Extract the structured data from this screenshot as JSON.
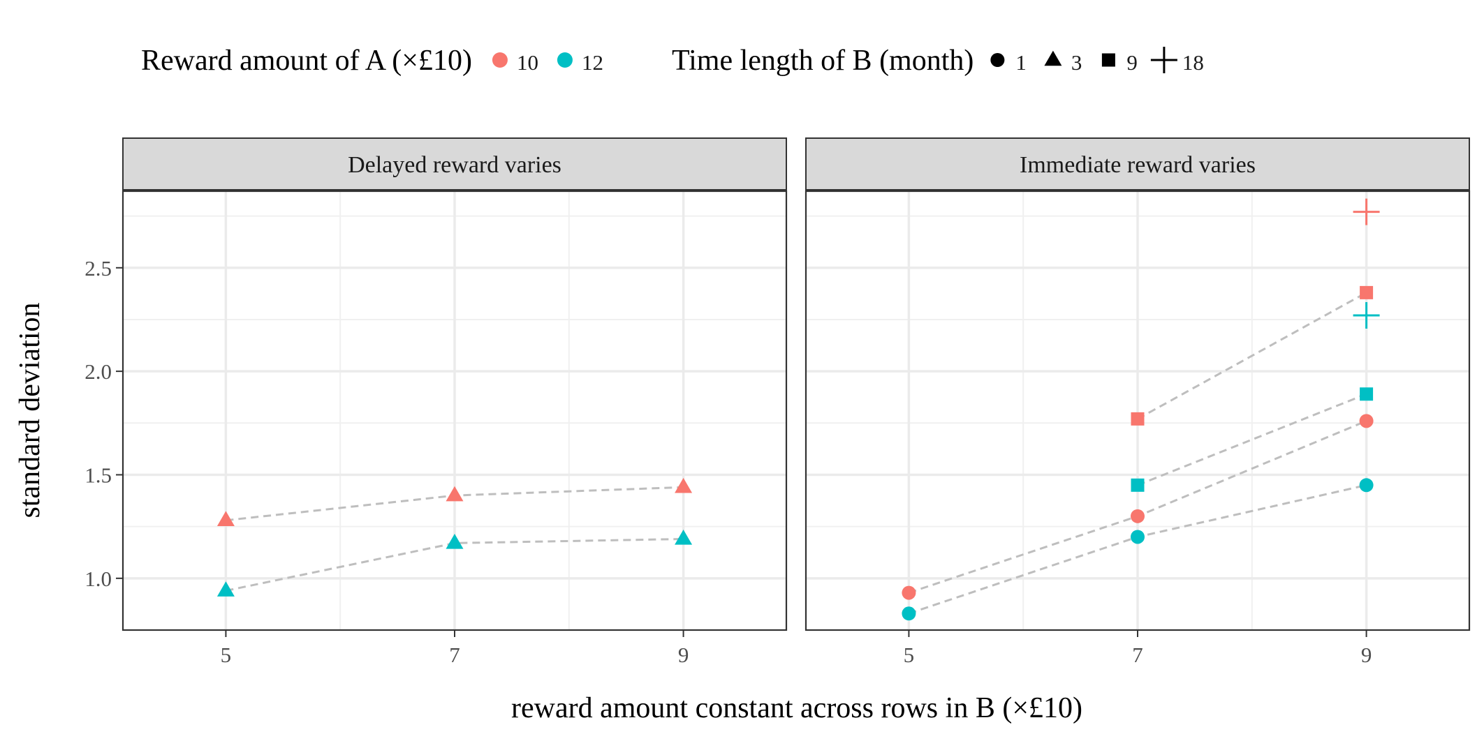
{
  "chart_data": {
    "type": "scatter",
    "xlabel": "reward amount constant across rows in B (×£10)",
    "ylabel": "standard deviation",
    "xlim": [
      4.1,
      9.9
    ],
    "ylim": [
      0.75,
      2.87
    ],
    "x_ticks": [
      "5",
      "7",
      "9"
    ],
    "y_ticks": [
      "1.0",
      "1.5",
      "2.0",
      "2.5"
    ],
    "grid": true,
    "legend_position": "top",
    "colors": {
      "10": "#F8766D",
      "12": "#00BFC4",
      "line": "#BEBEBE"
    },
    "legend": {
      "color_title": "Reward amount of A (×£10)",
      "color_items": [
        {
          "label": "10",
          "color": "#F8766D"
        },
        {
          "label": "12",
          "color": "#00BFC4"
        }
      ],
      "shape_title": "Time length of B (month)",
      "shape_items": [
        {
          "label": "1",
          "shape": "circle"
        },
        {
          "label": "3",
          "shape": "triangle"
        },
        {
          "label": "9",
          "shape": "square"
        },
        {
          "label": "18",
          "shape": "plus"
        }
      ]
    },
    "panels": [
      {
        "strip": "Delayed reward varies",
        "points": [
          {
            "x": 5,
            "y": 1.28,
            "A": "10",
            "B": "3"
          },
          {
            "x": 7,
            "y": 1.4,
            "A": "10",
            "B": "3"
          },
          {
            "x": 9,
            "y": 1.44,
            "A": "10",
            "B": "3"
          },
          {
            "x": 5,
            "y": 0.94,
            "A": "12",
            "B": "3"
          },
          {
            "x": 7,
            "y": 1.17,
            "A": "12",
            "B": "3"
          },
          {
            "x": 9,
            "y": 1.19,
            "A": "12",
            "B": "3"
          }
        ],
        "lines": [
          {
            "A": "10",
            "B": "3",
            "points": [
              [
                5,
                1.28
              ],
              [
                7,
                1.4
              ],
              [
                9,
                1.44
              ]
            ]
          },
          {
            "A": "12",
            "B": "3",
            "points": [
              [
                5,
                0.94
              ],
              [
                7,
                1.17
              ],
              [
                9,
                1.19
              ]
            ]
          }
        ]
      },
      {
        "strip": "Immediate reward varies",
        "points": [
          {
            "x": 9,
            "y": 2.77,
            "A": "10",
            "B": "18"
          },
          {
            "x": 9,
            "y": 2.38,
            "A": "10",
            "B": "9"
          },
          {
            "x": 9,
            "y": 2.27,
            "A": "12",
            "B": "18"
          },
          {
            "x": 9,
            "y": 1.89,
            "A": "12",
            "B": "9"
          },
          {
            "x": 9,
            "y": 1.76,
            "A": "10",
            "B": "1"
          },
          {
            "x": 9,
            "y": 1.45,
            "A": "12",
            "B": "1"
          },
          {
            "x": 7,
            "y": 1.77,
            "A": "10",
            "B": "9"
          },
          {
            "x": 7,
            "y": 1.45,
            "A": "12",
            "B": "9"
          },
          {
            "x": 7,
            "y": 1.3,
            "A": "10",
            "B": "1"
          },
          {
            "x": 7,
            "y": 1.2,
            "A": "12",
            "B": "1"
          },
          {
            "x": 5,
            "y": 0.93,
            "A": "10",
            "B": "1"
          },
          {
            "x": 5,
            "y": 0.83,
            "A": "12",
            "B": "1"
          }
        ],
        "lines": [
          {
            "A": "10",
            "B": "9",
            "points": [
              [
                7,
                1.77
              ],
              [
                9,
                2.38
              ]
            ]
          },
          {
            "A": "12",
            "B": "9",
            "points": [
              [
                7,
                1.45
              ],
              [
                9,
                1.89
              ]
            ]
          },
          {
            "A": "10",
            "B": "1",
            "points": [
              [
                5,
                0.93
              ],
              [
                7,
                1.3
              ],
              [
                9,
                1.76
              ]
            ]
          },
          {
            "A": "12",
            "B": "1",
            "points": [
              [
                5,
                0.83
              ],
              [
                7,
                1.2
              ],
              [
                9,
                1.45
              ]
            ]
          }
        ]
      }
    ]
  }
}
